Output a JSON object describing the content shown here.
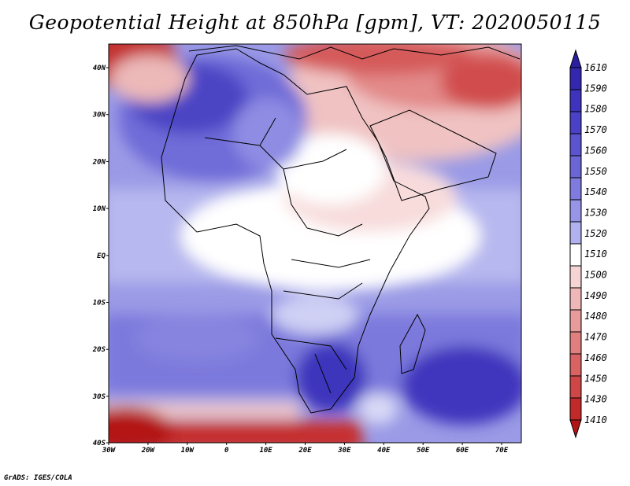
{
  "title": "Geopotential Height at 850hPa [gpm], VT: 2020050115",
  "credit": "GrADS: IGES/COLA",
  "map": {
    "lon_labels": [
      "30W",
      "20W",
      "10W",
      "0",
      "10E",
      "20E",
      "30E",
      "40E",
      "50E",
      "60E",
      "70E"
    ],
    "lat_labels": [
      "40N",
      "30N",
      "20N",
      "10N",
      "EQ",
      "10S",
      "20S",
      "30S",
      "40S"
    ]
  },
  "colorbar": {
    "levels": [
      "1610",
      "1590",
      "1580",
      "1570",
      "1560",
      "1550",
      "1540",
      "1530",
      "1520",
      "1510",
      "1500",
      "1490",
      "1480",
      "1470",
      "1460",
      "1450",
      "1430",
      "1410"
    ],
    "colors": [
      "#2a1fa0",
      "#3327b0",
      "#3d33bd",
      "#4a42c6",
      "#5a54cf",
      "#6a66d6",
      "#7e7cde",
      "#9695e6",
      "#b0b1ee",
      "#ffffff",
      "#f6d4d4",
      "#efb8b8",
      "#e89b9b",
      "#e17f7f",
      "#d96262",
      "#cf4646",
      "#c22a2a",
      "#b01414"
    ]
  },
  "chart_data": {
    "type": "heatmap",
    "title": "Geopotential Height at 850hPa [gpm], VT: 2020050115",
    "variable": "Geopotential Height at 850hPa",
    "units": "gpm",
    "valid_time": "2020050115",
    "lon_range": [
      -30,
      75
    ],
    "lat_range": [
      -40,
      45
    ],
    "levels": [
      1410,
      1430,
      1450,
      1460,
      1470,
      1480,
      1490,
      1500,
      1510,
      1520,
      1530,
      1540,
      1550,
      1560,
      1570,
      1580,
      1590,
      1610
    ]
  }
}
